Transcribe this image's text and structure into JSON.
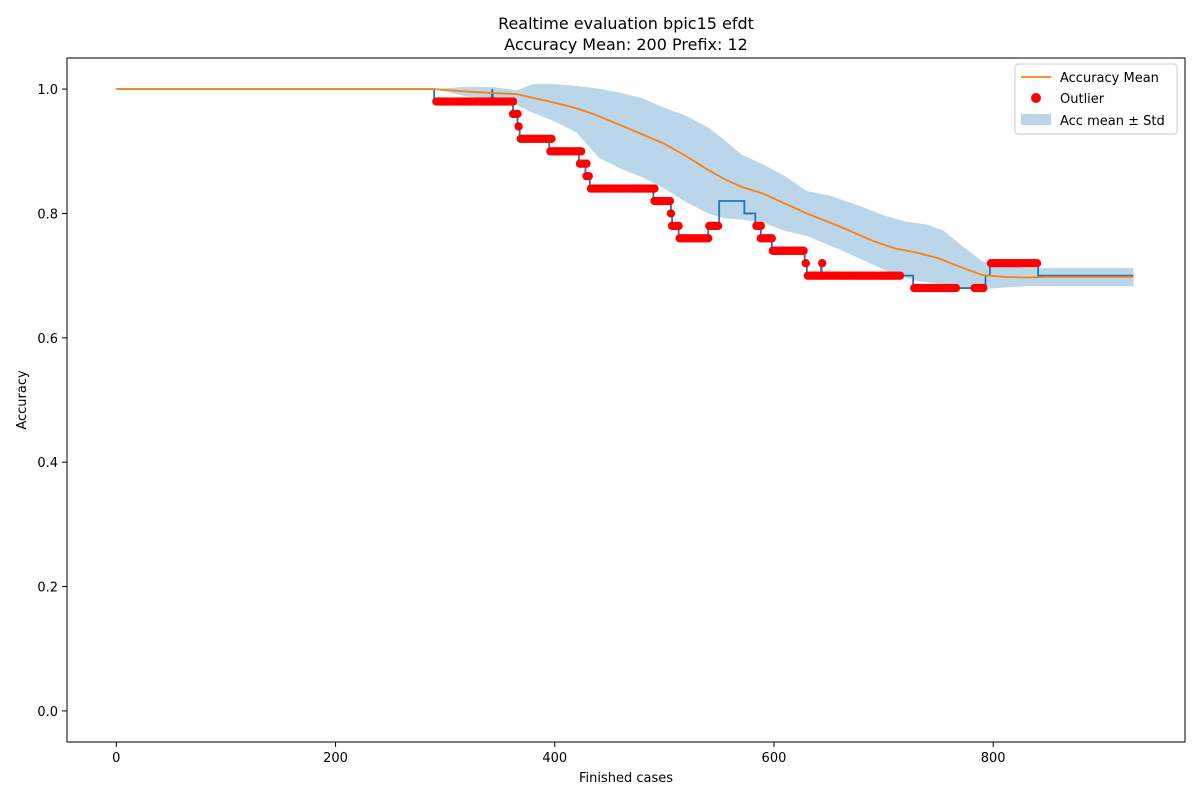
{
  "chart_data": {
    "type": "line",
    "title": "Realtime evaluation bpic15 efdt",
    "subtitle": "Accuracy Mean: 200 Prefix: 12",
    "xlabel": "Finished cases",
    "ylabel": "Accuracy",
    "xlim": [
      -45,
      975
    ],
    "ylim": [
      -0.05,
      1.05
    ],
    "xticks": [
      0,
      200,
      400,
      600,
      800
    ],
    "yticks": [
      0.0,
      0.2,
      0.4,
      0.6,
      0.8,
      1.0
    ],
    "xtick_labels": [
      "0",
      "200",
      "400",
      "600",
      "800"
    ],
    "ytick_labels": [
      "0.0",
      "0.2",
      "0.4",
      "0.6",
      "0.8",
      "1.0"
    ],
    "grid": false,
    "legend_position": "top-right",
    "colors": {
      "accuracy": "#1f77b4",
      "mean": "#ff7f0e",
      "outlier": "#ff0000",
      "band": "#1f77b4"
    },
    "series": [
      {
        "name": "",
        "kind": "step",
        "points": [
          [
            0,
            1.0
          ],
          [
            290,
            1.0
          ],
          [
            290,
            0.98
          ],
          [
            342,
            0.98
          ],
          [
            343,
            1.0
          ],
          [
            344,
            0.98
          ],
          [
            362,
            0.98
          ],
          [
            362,
            0.96
          ],
          [
            366,
            0.96
          ],
          [
            366,
            0.94
          ],
          [
            368,
            0.94
          ],
          [
            368,
            0.92
          ],
          [
            395,
            0.92
          ],
          [
            395,
            0.9
          ],
          [
            422,
            0.9
          ],
          [
            422,
            0.88
          ],
          [
            428,
            0.88
          ],
          [
            428,
            0.86
          ],
          [
            432,
            0.86
          ],
          [
            432,
            0.84
          ],
          [
            490,
            0.84
          ],
          [
            490,
            0.82
          ],
          [
            506,
            0.82
          ],
          [
            506,
            0.8
          ],
          [
            507,
            0.8
          ],
          [
            507,
            0.78
          ],
          [
            513,
            0.78
          ],
          [
            513,
            0.76
          ],
          [
            540,
            0.76
          ],
          [
            540,
            0.78
          ],
          [
            550,
            0.78
          ],
          [
            550,
            0.82
          ],
          [
            573,
            0.82
          ],
          [
            573,
            0.8
          ],
          [
            583,
            0.8
          ],
          [
            583,
            0.78
          ],
          [
            588,
            0.78
          ],
          [
            588,
            0.76
          ],
          [
            598,
            0.76
          ],
          [
            598,
            0.74
          ],
          [
            628,
            0.74
          ],
          [
            628,
            0.72
          ],
          [
            630,
            0.72
          ],
          [
            630,
            0.7
          ],
          [
            643,
            0.7
          ],
          [
            643,
            0.72
          ],
          [
            644,
            0.7
          ],
          [
            727,
            0.7
          ],
          [
            727,
            0.68
          ],
          [
            793,
            0.68
          ],
          [
            793,
            0.7
          ],
          [
            797,
            0.7
          ],
          [
            797,
            0.72
          ],
          [
            841,
            0.72
          ],
          [
            841,
            0.7
          ],
          [
            928,
            0.7
          ]
        ]
      },
      {
        "name": "Accuracy Mean",
        "kind": "line",
        "points": [
          [
            0,
            1.0
          ],
          [
            290,
            1.0
          ],
          [
            320,
            0.996
          ],
          [
            340,
            0.994
          ],
          [
            365,
            0.992
          ],
          [
            380,
            0.986
          ],
          [
            400,
            0.978
          ],
          [
            420,
            0.969
          ],
          [
            435,
            0.96
          ],
          [
            460,
            0.942
          ],
          [
            480,
            0.927
          ],
          [
            500,
            0.912
          ],
          [
            520,
            0.892
          ],
          [
            540,
            0.87
          ],
          [
            555,
            0.855
          ],
          [
            570,
            0.843
          ],
          [
            590,
            0.832
          ],
          [
            610,
            0.816
          ],
          [
            630,
            0.8
          ],
          [
            660,
            0.779
          ],
          [
            690,
            0.756
          ],
          [
            710,
            0.744
          ],
          [
            730,
            0.737
          ],
          [
            750,
            0.728
          ],
          [
            770,
            0.714
          ],
          [
            790,
            0.701
          ],
          [
            810,
            0.698
          ],
          [
            830,
            0.697
          ],
          [
            850,
            0.698
          ],
          [
            900,
            0.698
          ],
          [
            928,
            0.698
          ]
        ]
      },
      {
        "name": "Acc mean ± Std",
        "kind": "band",
        "upper": [
          [
            290,
            1.0
          ],
          [
            320,
            1.004
          ],
          [
            345,
            1.003
          ],
          [
            365,
            0.998
          ],
          [
            380,
            1.008
          ],
          [
            400,
            1.008
          ],
          [
            420,
            1.005
          ],
          [
            440,
            1.001
          ],
          [
            460,
            0.994
          ],
          [
            480,
            0.985
          ],
          [
            500,
            0.97
          ],
          [
            520,
            0.957
          ],
          [
            540,
            0.938
          ],
          [
            555,
            0.918
          ],
          [
            570,
            0.895
          ],
          [
            590,
            0.879
          ],
          [
            610,
            0.86
          ],
          [
            630,
            0.836
          ],
          [
            650,
            0.829
          ],
          [
            680,
            0.811
          ],
          [
            700,
            0.797
          ],
          [
            720,
            0.787
          ],
          [
            740,
            0.782
          ],
          [
            755,
            0.772
          ],
          [
            770,
            0.75
          ],
          [
            790,
            0.723
          ],
          [
            810,
            0.716
          ],
          [
            830,
            0.712
          ],
          [
            928,
            0.712
          ]
        ],
        "lower": [
          [
            290,
            1.0
          ],
          [
            320,
            0.988
          ],
          [
            345,
            0.983
          ],
          [
            365,
            0.975
          ],
          [
            380,
            0.962
          ],
          [
            400,
            0.948
          ],
          [
            420,
            0.93
          ],
          [
            440,
            0.89
          ],
          [
            460,
            0.872
          ],
          [
            480,
            0.858
          ],
          [
            500,
            0.84
          ],
          [
            520,
            0.818
          ],
          [
            540,
            0.8
          ],
          [
            555,
            0.792
          ],
          [
            570,
            0.79
          ],
          [
            590,
            0.785
          ],
          [
            610,
            0.772
          ],
          [
            630,
            0.764
          ],
          [
            660,
            0.742
          ],
          [
            690,
            0.718
          ],
          [
            710,
            0.702
          ],
          [
            730,
            0.692
          ],
          [
            760,
            0.684
          ],
          [
            790,
            0.678
          ],
          [
            810,
            0.681
          ],
          [
            830,
            0.683
          ],
          [
            928,
            0.683
          ]
        ]
      },
      {
        "name": "Outlier",
        "kind": "scatter",
        "segments": [
          {
            "from": 292,
            "to": 363,
            "y": 0.98
          },
          {
            "from": 362,
            "to": 366,
            "y": 0.96
          },
          {
            "from": 367,
            "to": 368,
            "y": 0.94
          },
          {
            "from": 369,
            "to": 397,
            "y": 0.92
          },
          {
            "from": 396,
            "to": 424,
            "y": 0.9
          },
          {
            "from": 423,
            "to": 429,
            "y": 0.88
          },
          {
            "from": 429,
            "to": 432,
            "y": 0.86
          },
          {
            "from": 433,
            "to": 491,
            "y": 0.84
          },
          {
            "from": 491,
            "to": 506,
            "y": 0.82
          },
          {
            "from": 506,
            "to": 507,
            "y": 0.8
          },
          {
            "from": 507,
            "to": 514,
            "y": 0.78
          },
          {
            "from": 514,
            "to": 540,
            "y": 0.76
          },
          {
            "from": 541,
            "to": 549,
            "y": 0.78
          },
          {
            "from": 584,
            "to": 589,
            "y": 0.78
          },
          {
            "from": 588,
            "to": 598,
            "y": 0.76
          },
          {
            "from": 599,
            "to": 628,
            "y": 0.74
          },
          {
            "from": 629,
            "to": 629,
            "y": 0.72
          },
          {
            "from": 631,
            "to": 716,
            "y": 0.7
          },
          {
            "from": 644,
            "to": 644,
            "y": 0.72
          },
          {
            "from": 728,
            "to": 766,
            "y": 0.68
          },
          {
            "from": 783,
            "to": 792,
            "y": 0.68
          },
          {
            "from": 798,
            "to": 841,
            "y": 0.72
          }
        ]
      }
    ]
  }
}
